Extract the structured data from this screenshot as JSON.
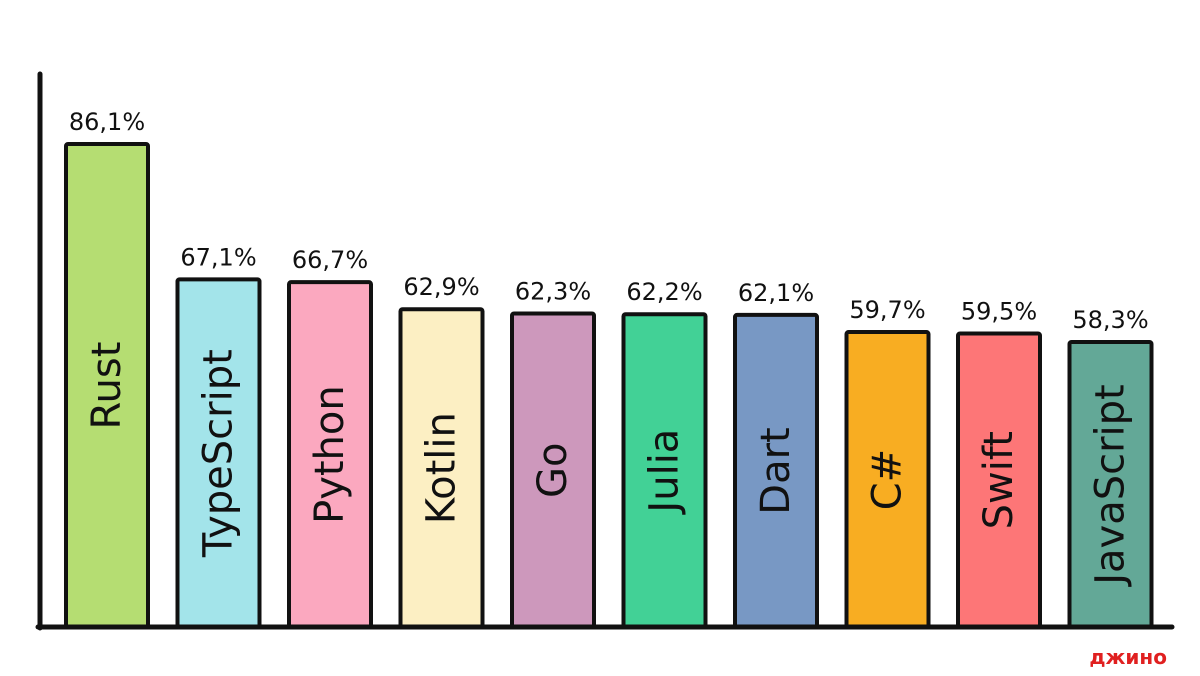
{
  "chart_data": {
    "type": "bar",
    "categories": [
      "Rust",
      "TypeScript",
      "Python",
      "Kotlin",
      "Go",
      "Julia",
      "Dart",
      "C#",
      "Swift",
      "JavaScript"
    ],
    "values": [
      86.1,
      67.1,
      66.7,
      62.9,
      62.3,
      62.2,
      62.1,
      59.7,
      59.5,
      58.3
    ],
    "value_labels": [
      "86,1%",
      "67,1%",
      "66,7%",
      "62,9%",
      "62,3%",
      "62,2%",
      "62,1%",
      "59,7%",
      "59,5%",
      "58,3%"
    ],
    "colors": [
      "#b5dd72",
      "#a3e4ea",
      "#fba8bf",
      "#fcefc3",
      "#cd98bc",
      "#42d196",
      "#7898c4",
      "#f8ad22",
      "#fd7677",
      "#63a897"
    ],
    "title": "",
    "xlabel": "",
    "ylabel": "",
    "grid": false,
    "legend": "none",
    "category_label_orientation": "vertical"
  },
  "brand": {
    "label": "джино"
  }
}
